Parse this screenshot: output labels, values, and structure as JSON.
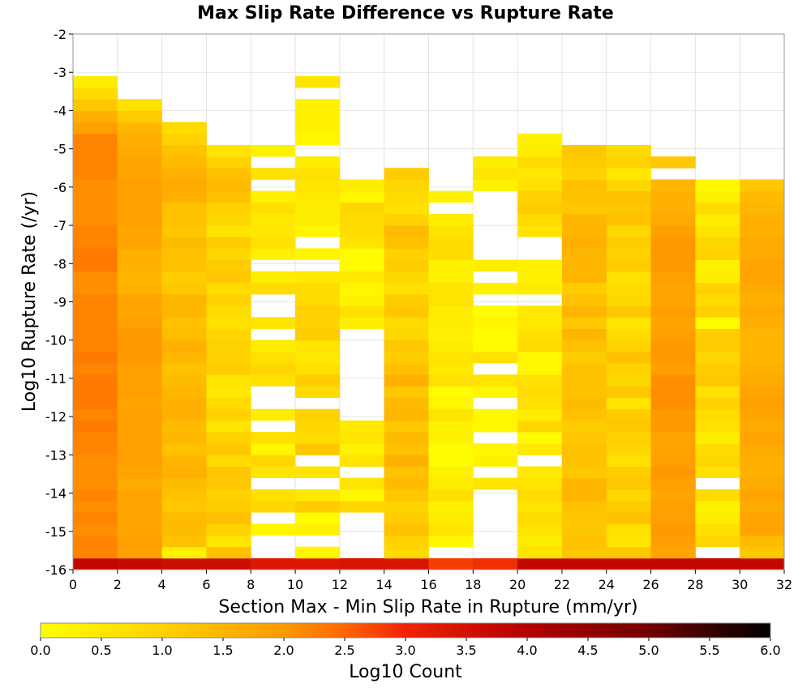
{
  "chart_data": {
    "type": "heatmap",
    "title": "Max Slip Rate Difference vs Rupture Rate",
    "xlabel": "Section Max - Min Slip Rate in Rupture (mm/yr)",
    "ylabel": "Log10 Rupture Rate (/yr)",
    "colorbar_label": "Log10 Count",
    "xlim": [
      0,
      32
    ],
    "ylim": [
      -16,
      -2
    ],
    "xticks": [
      "0",
      "2",
      "4",
      "6",
      "8",
      "10",
      "12",
      "14",
      "16",
      "18",
      "20",
      "22",
      "24",
      "26",
      "28",
      "30",
      "32"
    ],
    "yticks": [
      "-2",
      "-3",
      "-4",
      "-5",
      "-6",
      "-7",
      "-8",
      "-9",
      "-10",
      "-11",
      "-12",
      "-13",
      "-14",
      "-15",
      "-16"
    ],
    "colorbar_ticks": [
      "0.0",
      "0.5",
      "1.0",
      "1.5",
      "2.0",
      "2.5",
      "3.0",
      "3.5",
      "4.0",
      "4.5",
      "5.0",
      "5.5",
      "6.0"
    ],
    "color_range": [
      0,
      6
    ],
    "x_bin_width": 2,
    "y_bin_height": 0.3,
    "y_bin_start": -16,
    "grid": true,
    "columns": [
      {
        "x_start": 0,
        "counts": [
          3.8,
          2.2,
          2.2,
          2.1,
          2.2,
          2.1,
          2.2,
          2.1,
          2.1,
          2.1,
          2.2,
          2.2,
          2.3,
          2.2,
          2.3,
          2.3,
          2.3,
          2.2,
          2.3,
          2.2,
          2.2,
          2.2,
          2.2,
          2.2,
          2.1,
          2.1,
          2.3,
          2.3,
          2.2,
          2.2,
          2.1,
          2.1,
          2.1,
          2.1,
          2.2,
          2.2,
          2.2,
          2.2,
          1.9,
          1.6,
          1.2,
          0.8,
          0.4
        ]
      },
      {
        "x_start": 2,
        "counts": [
          3.7,
          1.9,
          1.9,
          1.8,
          1.8,
          1.8,
          1.8,
          1.7,
          1.8,
          1.9,
          1.9,
          1.9,
          1.9,
          1.9,
          1.8,
          1.9,
          1.9,
          1.9,
          2.0,
          2.0,
          2.0,
          1.9,
          1.8,
          1.8,
          1.6,
          1.5,
          1.6,
          1.6,
          1.8,
          1.8,
          1.9,
          1.9,
          1.9,
          1.9,
          1.8,
          1.8,
          1.7,
          1.6,
          1.5,
          1.1,
          0.7
        ]
      },
      {
        "x_start": 4,
        "counts": [
          3.6,
          0.3,
          1.3,
          1.4,
          1.4,
          1.2,
          1.3,
          1.4,
          1.6,
          1.5,
          1.3,
          1.5,
          1.4,
          1.6,
          1.6,
          1.5,
          1.4,
          1.3,
          1.5,
          1.6,
          1.4,
          1.3,
          1.5,
          1.5,
          1.2,
          1.1,
          1.3,
          1.3,
          1.4,
          1.2,
          1.3,
          1.3,
          1.6,
          1.7,
          1.6,
          1.4,
          1.3,
          1.0,
          0.8
        ]
      },
      {
        "x_start": 6,
        "counts": [
          3.6,
          1.3,
          0.6,
          1.0,
          1.3,
          1.1,
          1.0,
          1.2,
          1.2,
          0.8,
          1.2,
          1.0,
          0.6,
          1.0,
          0.8,
          0.5,
          0.6,
          1.1,
          1.0,
          1.0,
          0.9,
          0.7,
          0.8,
          1.0,
          0.8,
          1.2,
          1.1,
          0.9,
          1.1,
          0.6,
          0.9,
          1.0,
          1.3,
          1.4,
          1.3,
          1.0,
          0.6
        ]
      },
      {
        "x_start": 8,
        "counts": [
          3.3,
          null,
          null,
          0.2,
          null,
          0.9,
          0.7,
          null,
          0.6,
          0.9,
          0.2,
          0.7,
          null,
          0.4,
          null,
          null,
          0.7,
          0.9,
          0.7,
          0.4,
          null,
          0.6,
          null,
          null,
          0.8,
          0.4,
          null,
          0.3,
          0.7,
          0.5,
          0.5,
          0.7,
          0.3,
          null,
          0.7,
          null,
          0.3
        ]
      },
      {
        "x_start": 10,
        "counts": [
          3.3,
          0.2,
          null,
          0.3,
          0.1,
          1.1,
          0.5,
          null,
          0.6,
          null,
          1.2,
          0.8,
          0.9,
          1.0,
          null,
          0.8,
          1.1,
          0.7,
          0.5,
          0.6,
          1.1,
          1.0,
          1.0,
          0.8,
          0.8,
          0.5,
          null,
          0.2,
          null,
          0.2,
          0.4,
          0.4,
          0.5,
          0.6,
          0.7,
          0.4,
          null,
          0.2,
          0.3,
          0.3,
          0.3,
          null,
          0.6
        ]
      },
      {
        "x_start": 12,
        "counts": [
          3.4,
          null,
          null,
          null,
          null,
          0.9,
          0.2,
          0.6,
          null,
          0.6,
          0.3,
          0.6,
          0.5,
          null,
          null,
          null,
          null,
          null,
          null,
          null,
          null,
          0.4,
          0.7,
          0.3,
          0.2,
          0.5,
          0.1,
          0.1,
          0.6,
          0.8,
          0.8,
          0.9,
          0.2,
          0.4
        ]
      },
      {
        "x_start": 14,
        "counts": [
          3.4,
          0.8,
          1.0,
          1.3,
          1.1,
          1.0,
          1.2,
          1.4,
          1.3,
          1.6,
          1.3,
          1.4,
          1.2,
          1.5,
          1.4,
          1.2,
          1.6,
          1.3,
          1.1,
          1.2,
          0.9,
          0.8,
          1.2,
          1.1,
          0.7,
          0.9,
          1.1,
          1.0,
          1.3,
          1.4,
          1.0,
          0.7,
          0.8,
          0.9,
          1.1
        ]
      },
      {
        "x_start": 16,
        "counts": [
          2.8,
          null,
          0.2,
          0.6,
          0.4,
          0.3,
          0.7,
          0.4,
          0.3,
          0.1,
          0.1,
          0.3,
          0.3,
          0.6,
          0.2,
          0.1,
          0.7,
          0.5,
          0.6,
          0.4,
          0.3,
          0.4,
          0.4,
          0.6,
          0.6,
          0.3,
          0.3,
          0.8,
          0.8,
          0.6,
          0.4,
          null,
          0.3
        ]
      },
      {
        "x_start": 18,
        "counts": [
          2.9,
          null,
          null,
          null,
          null,
          null,
          null,
          0.6,
          null,
          0.3,
          0.2,
          null,
          0.2,
          0.2,
          null,
          0.2,
          0.6,
          null,
          0.7,
          0.1,
          0.1,
          0.2,
          0.1,
          null,
          0.3,
          null,
          0.4,
          null,
          null,
          null,
          null,
          null,
          null,
          0.3,
          0.6,
          0.4
        ]
      },
      {
        "x_start": 20,
        "counts": [
          3.8,
          0.6,
          0.4,
          0.6,
          0.8,
          0.6,
          0.8,
          0.6,
          0.5,
          null,
          0.5,
          0.1,
          0.9,
          0.4,
          0.7,
          0.8,
          0.7,
          0.2,
          0.2,
          0.8,
          0.7,
          0.5,
          0.5,
          null,
          0.4,
          0.3,
          0.3,
          null,
          null,
          0.6,
          0.8,
          1.1,
          1.0,
          0.7,
          0.5,
          0.8,
          0.4,
          0.3
        ]
      },
      {
        "x_start": 22,
        "counts": [
          3.8,
          1.2,
          1.3,
          1.2,
          1.2,
          1.3,
          1.5,
          1.5,
          1.2,
          1.3,
          1.3,
          1.2,
          1.1,
          1.3,
          1.4,
          1.3,
          1.3,
          1.3,
          1.1,
          1.3,
          1.5,
          1.2,
          1.5,
          1.3,
          1.1,
          1.5,
          1.5,
          1.5,
          1.6,
          1.5,
          1.5,
          1.2,
          1.3,
          1.3,
          1.0,
          1.1,
          1.2
        ]
      },
      {
        "x_start": 24,
        "counts": [
          3.8,
          1.2,
          0.6,
          0.7,
          1.3,
          1.1,
          0.9,
          1.2,
          1.1,
          0.7,
          0.9,
          1.0,
          1.2,
          1.1,
          0.6,
          1.2,
          0.9,
          1.0,
          1.3,
          1.0,
          0.8,
          0.6,
          1.2,
          0.9,
          0.8,
          0.7,
          1.1,
          1.0,
          1.1,
          0.9,
          1.3,
          1.2,
          1.3,
          0.9,
          0.5,
          1.0,
          0.8
        ]
      },
      {
        "x_start": 26,
        "counts": [
          3.8,
          1.8,
          1.9,
          2.0,
          1.9,
          1.9,
          1.8,
          1.9,
          2.0,
          1.9,
          1.8,
          1.8,
          2.0,
          2.0,
          2.1,
          2.1,
          2.1,
          1.9,
          2.0,
          2.0,
          1.9,
          1.8,
          1.9,
          1.8,
          1.8,
          1.9,
          2.0,
          2.0,
          2.0,
          1.9,
          1.7,
          1.6,
          1.6,
          1.5,
          null,
          1.2
        ]
      },
      {
        "x_start": 28,
        "counts": [
          3.8,
          null,
          0.9,
          0.7,
          0.4,
          0.3,
          0.8,
          null,
          0.7,
          0.9,
          0.8,
          0.4,
          0.7,
          0.8,
          1.0,
          0.7,
          1.2,
          1.1,
          0.9,
          1.1,
          1.1,
          0.1,
          1.0,
          0.8,
          1.0,
          0.4,
          0.3,
          1.0,
          0.9,
          0.6,
          0.4,
          0.8,
          0.3,
          0.2
        ]
      },
      {
        "x_start": 30,
        "counts": [
          3.8,
          1.2,
          1.4,
          1.8,
          1.8,
          1.7,
          1.8,
          1.7,
          1.6,
          1.6,
          1.7,
          1.8,
          1.7,
          1.8,
          1.9,
          1.8,
          1.7,
          1.6,
          1.5,
          1.5,
          1.5,
          1.6,
          1.7,
          1.6,
          1.7,
          1.8,
          1.8,
          1.7,
          1.7,
          1.6,
          1.6,
          1.5,
          1.4,
          1.2
        ]
      }
    ]
  }
}
